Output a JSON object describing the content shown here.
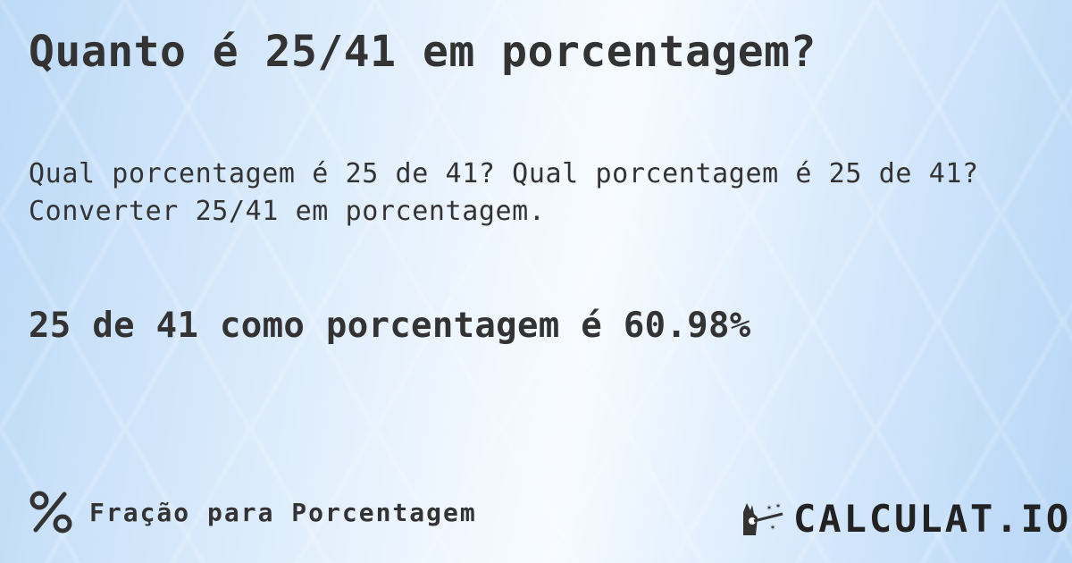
{
  "title": "Quanto é 25/41 em porcentagem?",
  "description": "Qual porcentagem é 25 de 41? Qual porcentagem é 25 de 41? Converter 25/41 em porcentagem.",
  "answer": "25 de 41 como porcentagem é 60.98%",
  "footer": {
    "icon": "percent-icon",
    "label": "Fração para Porcentagem"
  },
  "logo": {
    "text": "CALCULAT.IO",
    "icon": "magic-hand-wand-icon"
  }
}
